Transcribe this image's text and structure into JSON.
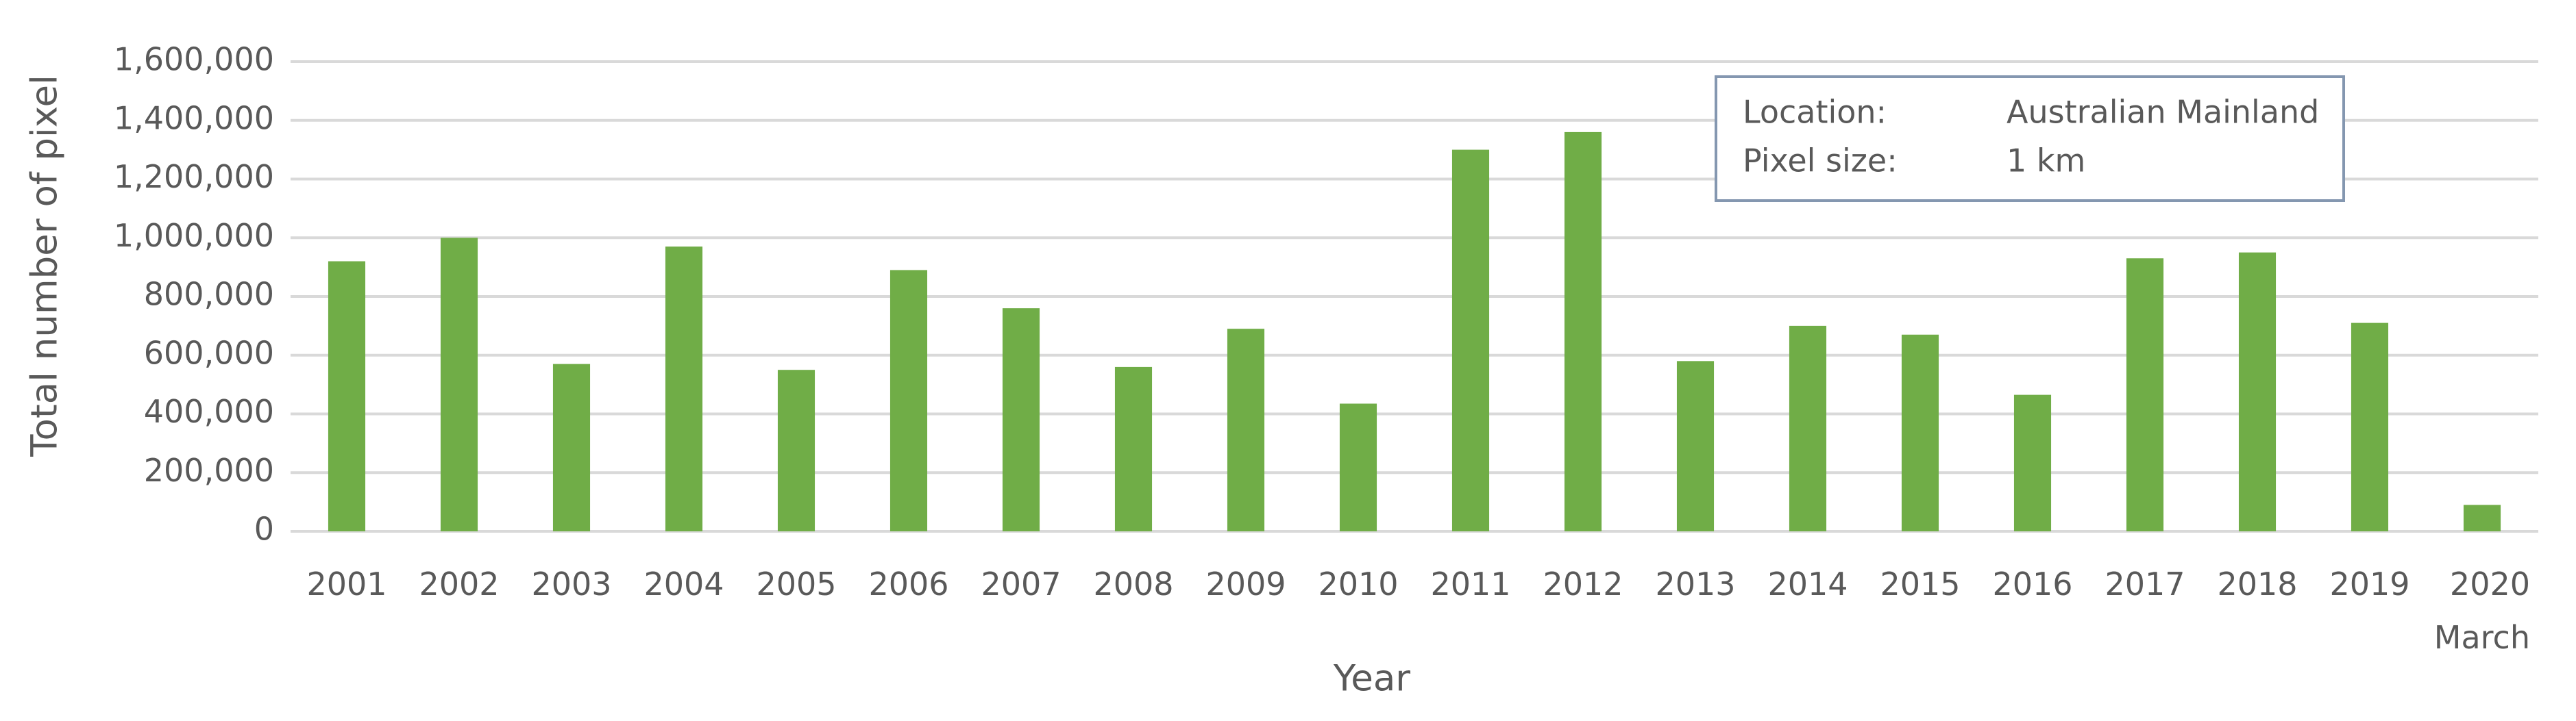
{
  "chart_data": {
    "type": "bar",
    "x_label": "Year",
    "y_label": "Total number of pixel",
    "categories": [
      "2001",
      "2002",
      "2003",
      "2004",
      "2005",
      "2006",
      "2007",
      "2008",
      "2009",
      "2010",
      "2011",
      "2012",
      "2013",
      "2014",
      "2015",
      "2016",
      "2017",
      "2018",
      "2019",
      "2020\nMarch"
    ],
    "values": [
      920000,
      1000000,
      570000,
      970000,
      550000,
      890000,
      760000,
      560000,
      690000,
      435000,
      1300000,
      1360000,
      580000,
      700000,
      670000,
      465000,
      930000,
      950000,
      710000,
      90000
    ],
    "color": "#70ad47",
    "ylim": [
      0,
      1600000
    ],
    "yticks": [
      0,
      {
        "value": 200000,
        "label": "200,000"
      },
      {
        "value": 400000,
        "label": "400,000"
      },
      {
        "value": 600000,
        "label": "600,000"
      },
      {
        "value": 800000,
        "label": "800,000"
      },
      {
        "value": 1000000,
        "label": "1,000,000"
      },
      {
        "value": 1200000,
        "label": "1,200,000"
      },
      {
        "value": 1400000,
        "label": "1,400,000"
      },
      {
        "value": 1600000,
        "label": "1,600,000"
      }
    ],
    "grid": true,
    "annotation": [
      [
        "Location:",
        "Australian Mainland"
      ],
      [
        "Pixel size:",
        "1 km"
      ]
    ]
  }
}
